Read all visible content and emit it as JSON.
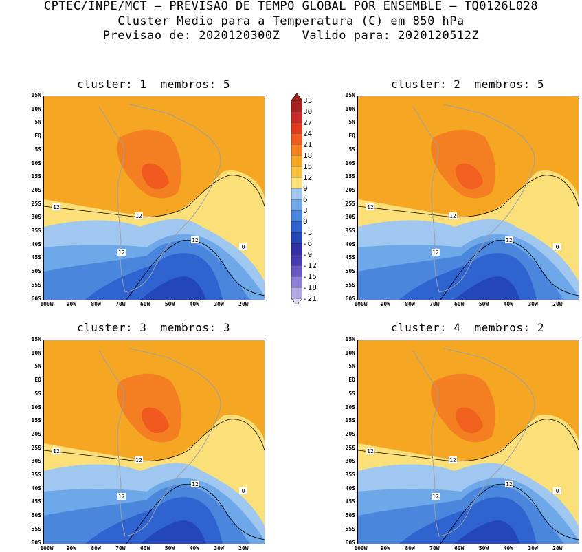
{
  "header": {
    "line1": "CPTEC/INPE/MCT – PREVISAO DE TEMPO GLOBAL POR ENSEMBLE – TQ0126L028",
    "line2": "Cluster Medio para a Temperatura (C) em 850 hPa",
    "line3": "Previsao de: 2020120300Z   Valido para: 2020120512Z"
  },
  "panels": [
    {
      "title": "cluster: 1  membros: 5"
    },
    {
      "title": "cluster: 2  membros: 5"
    },
    {
      "title": "cluster: 3  membros: 3"
    },
    {
      "title": "cluster: 4  membros: 2"
    }
  ],
  "axes": {
    "lat_labels": [
      "15N",
      "10N",
      "5N",
      "EQ",
      "5S",
      "10S",
      "15S",
      "20S",
      "25S",
      "30S",
      "35S",
      "40S",
      "45S",
      "50S",
      "55S",
      "60S"
    ],
    "lon_labels": [
      "100W",
      "90W",
      "80W",
      "70W",
      "60W",
      "50W",
      "40W",
      "30W",
      "20W"
    ]
  },
  "contour_labels": [
    "12",
    "12",
    "12",
    "12",
    "0"
  ],
  "colorbar": {
    "levels": [
      "33",
      "30",
      "27",
      "24",
      "21",
      "18",
      "15",
      "12",
      "9",
      "6",
      "3",
      "0",
      "-3",
      "-6",
      "-9",
      "-12",
      "-15",
      "-18",
      "-21"
    ],
    "colors": [
      "#a51f1f",
      "#c92a2a",
      "#e03b1e",
      "#f05a1e",
      "#f47e22",
      "#f5a623",
      "#f8c140",
      "#fbe07a",
      "#9fc7f0",
      "#6ea8e8",
      "#4a86dc",
      "#2f63d0",
      "#2447b8",
      "#3232a8",
      "#4a3ab0",
      "#6a55c4",
      "#8e7dd4",
      "#b4a8e4",
      "#dcd4f4"
    ]
  }
}
